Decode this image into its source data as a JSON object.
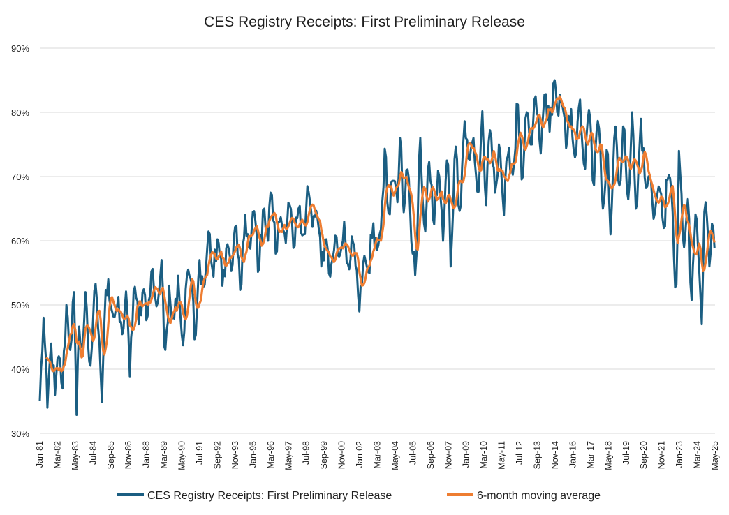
{
  "chart_data": {
    "type": "line",
    "title": "CES Registry Receipts: First Preliminary Release",
    "xlabel": "",
    "ylabel": "",
    "ylim": [
      30,
      90
    ],
    "y_ticks": [
      "30%",
      "40%",
      "50%",
      "60%",
      "70%",
      "80%",
      "90%"
    ],
    "y_tick_values": [
      30,
      40,
      50,
      60,
      70,
      80,
      90
    ],
    "grid": true,
    "legend_position": "bottom",
    "x_ticks": [
      "Jan-81",
      "Mar-82",
      "May-83",
      "Jul-84",
      "Sep-85",
      "Nov-86",
      "Jan-88",
      "Mar-89",
      "May-90",
      "Jul-91",
      "Sep-92",
      "Nov-93",
      "Jan-95",
      "Mar-96",
      "May-97",
      "Jul-98",
      "Sep-99",
      "Nov-00",
      "Jan-02",
      "Mar-03",
      "May-04",
      "Jul-05",
      "Sep-06",
      "Nov-07",
      "Jan-09",
      "Mar-10",
      "May-11",
      "Jul-12",
      "Sep-13",
      "Nov-14",
      "Jan-16",
      "Mar-17",
      "May-18",
      "Jul-19",
      "Sep-20",
      "Nov-21",
      "Jan-23",
      "Mar-24",
      "May-25"
    ],
    "x_start": "Jan-81",
    "x_end": "May-25",
    "colors": {
      "raw": "#1b5e82",
      "ma": "#ee7d31",
      "grid": "#d9d9d9",
      "text": "#1f1f1f"
    },
    "series": [
      {
        "name": "CES Registry Receipts: First Preliminary Release",
        "anchors": [
          [
            1981.0,
            35
          ],
          [
            1981.25,
            48
          ],
          [
            1981.5,
            34
          ],
          [
            1981.75,
            44
          ],
          [
            1982.0,
            36
          ],
          [
            1982.25,
            42
          ],
          [
            1982.5,
            37
          ],
          [
            1982.75,
            50
          ],
          [
            1983.0,
            43
          ],
          [
            1983.25,
            52
          ],
          [
            1983.4,
            31.5
          ],
          [
            1983.6,
            48
          ],
          [
            1983.8,
            42
          ],
          [
            1984.0,
            52
          ],
          [
            1984.3,
            39
          ],
          [
            1984.6,
            53
          ],
          [
            1984.9,
            45
          ],
          [
            1985.1,
            34
          ],
          [
            1985.3,
            52
          ],
          [
            1985.5,
            54
          ],
          [
            1985.8,
            48
          ],
          [
            1986.1,
            50
          ],
          [
            1986.4,
            45
          ],
          [
            1986.7,
            53
          ],
          [
            1986.9,
            38
          ],
          [
            1987.2,
            54
          ],
          [
            1987.5,
            47
          ],
          [
            1987.8,
            53
          ],
          [
            1988.1,
            48
          ],
          [
            1988.4,
            56
          ],
          [
            1988.7,
            49
          ],
          [
            1989.0,
            57
          ],
          [
            1989.2,
            41
          ],
          [
            1989.5,
            53
          ],
          [
            1989.8,
            47
          ],
          [
            1990.1,
            55
          ],
          [
            1990.4,
            43
          ],
          [
            1990.7,
            56
          ],
          [
            1991.0,
            53
          ],
          [
            1991.2,
            43
          ],
          [
            1991.5,
            57
          ],
          [
            1991.8,
            52
          ],
          [
            1992.1,
            62
          ],
          [
            1992.4,
            54
          ],
          [
            1992.7,
            61
          ],
          [
            1993.0,
            53
          ],
          [
            1993.3,
            60
          ],
          [
            1993.6,
            55
          ],
          [
            1993.9,
            63
          ],
          [
            1994.2,
            51
          ],
          [
            1994.5,
            64
          ],
          [
            1994.8,
            58
          ],
          [
            1995.1,
            65
          ],
          [
            1995.4,
            55
          ],
          [
            1995.7,
            66
          ],
          [
            1996.0,
            60
          ],
          [
            1996.2,
            69
          ],
          [
            1996.5,
            58
          ],
          [
            1996.8,
            64
          ],
          [
            1997.1,
            61
          ],
          [
            1997.4,
            66
          ],
          [
            1997.7,
            58
          ],
          [
            1998.0,
            65
          ],
          [
            1998.3,
            60
          ],
          [
            1998.6,
            69
          ],
          [
            1998.9,
            62
          ],
          [
            1999.2,
            65
          ],
          [
            1999.5,
            56
          ],
          [
            1999.8,
            61
          ],
          [
            2000.1,
            54
          ],
          [
            2000.4,
            61
          ],
          [
            2000.7,
            57
          ],
          [
            2001.0,
            63
          ],
          [
            2001.3,
            55
          ],
          [
            2001.6,
            60
          ],
          [
            2001.9,
            52
          ],
          [
            2002.0,
            49
          ],
          [
            2002.3,
            58
          ],
          [
            2002.6,
            55
          ],
          [
            2002.9,
            63
          ],
          [
            2003.2,
            58
          ],
          [
            2003.5,
            66
          ],
          [
            2003.7,
            76
          ],
          [
            2003.9,
            64
          ],
          [
            2004.2,
            70
          ],
          [
            2004.5,
            66
          ],
          [
            2004.7,
            78
          ],
          [
            2004.9,
            64
          ],
          [
            2005.2,
            72
          ],
          [
            2005.5,
            58
          ],
          [
            2005.7,
            54
          ],
          [
            2006.0,
            76
          ],
          [
            2006.3,
            60
          ],
          [
            2006.6,
            73
          ],
          [
            2006.9,
            62
          ],
          [
            2007.2,
            72
          ],
          [
            2007.5,
            60
          ],
          [
            2007.8,
            75
          ],
          [
            2008.0,
            56
          ],
          [
            2008.3,
            76
          ],
          [
            2008.6,
            64
          ],
          [
            2008.9,
            79
          ],
          [
            2009.2,
            72
          ],
          [
            2009.5,
            76
          ],
          [
            2009.8,
            66
          ],
          [
            2010.1,
            81
          ],
          [
            2010.3,
            64
          ],
          [
            2010.6,
            78
          ],
          [
            2010.9,
            67
          ],
          [
            2011.2,
            76
          ],
          [
            2011.5,
            64
          ],
          [
            2011.8,
            75
          ],
          [
            2012.1,
            70
          ],
          [
            2012.4,
            82
          ],
          [
            2012.7,
            68
          ],
          [
            2013.0,
            80
          ],
          [
            2013.3,
            74
          ],
          [
            2013.6,
            83
          ],
          [
            2013.9,
            73
          ],
          [
            2014.2,
            84
          ],
          [
            2014.5,
            77
          ],
          [
            2014.8,
            86
          ],
          [
            2015.0,
            80
          ],
          [
            2015.3,
            82
          ],
          [
            2015.6,
            74
          ],
          [
            2015.9,
            81
          ],
          [
            2016.2,
            72
          ],
          [
            2016.5,
            82
          ],
          [
            2016.8,
            70
          ],
          [
            2017.1,
            81
          ],
          [
            2017.4,
            68
          ],
          [
            2017.7,
            80
          ],
          [
            2018.0,
            65
          ],
          [
            2018.3,
            76
          ],
          [
            2018.5,
            61
          ],
          [
            2018.8,
            79
          ],
          [
            2019.1,
            68
          ],
          [
            2019.4,
            78
          ],
          [
            2019.7,
            65
          ],
          [
            2019.9,
            81
          ],
          [
            2020.2,
            63
          ],
          [
            2020.5,
            79
          ],
          [
            2020.8,
            68
          ],
          [
            2021.1,
            70
          ],
          [
            2021.4,
            64
          ],
          [
            2021.7,
            69
          ],
          [
            2022.0,
            62
          ],
          [
            2022.3,
            71
          ],
          [
            2022.6,
            64
          ],
          [
            2022.8,
            49
          ],
          [
            2023.0,
            74
          ],
          [
            2023.3,
            58
          ],
          [
            2023.6,
            67
          ],
          [
            2023.8,
            49
          ],
          [
            2024.1,
            65
          ],
          [
            2024.3,
            57
          ],
          [
            2024.5,
            47
          ],
          [
            2024.7,
            68
          ],
          [
            2025.0,
            56
          ],
          [
            2025.2,
            64
          ],
          [
            2025.37,
            57.5
          ]
        ],
        "noise_amplitude": 2.5
      },
      {
        "name": "6-month moving average",
        "window": 6
      }
    ]
  }
}
